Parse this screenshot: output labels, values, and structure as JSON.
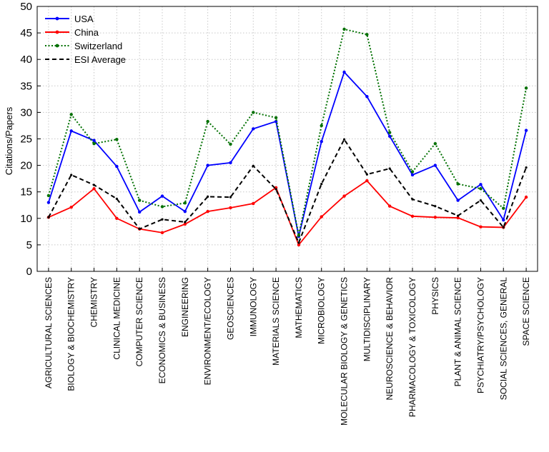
{
  "chart_data": {
    "type": "line",
    "title": "",
    "xlabel": "",
    "ylabel": "Citations/Papers",
    "ylim": [
      0,
      50
    ],
    "yticks": [
      0,
      5,
      10,
      15,
      20,
      25,
      30,
      35,
      40,
      45,
      50
    ],
    "grid": true,
    "legend_position": "top-left",
    "categories": [
      "AGRICULTURAL SCIENCES",
      "BIOLOGY & BIOCHEMISTRY",
      "CHEMISTRY",
      "CLINICAL MEDICINE",
      "COMPUTER SCIENCE",
      "ECONOMICS & BUSINESS",
      "ENGINEERING",
      "ENVIRONMENT/ECOLOGY",
      "GEOSCIENCES",
      "IMMUNOLOGY",
      "MATERIALS SCIENCE",
      "MATHEMATICS",
      "MICROBIOLOGY",
      "MOLECULAR BIOLOGY & GENETICS",
      "MULTIDISCIPLINARY",
      "NEUROSCIENCE & BEHAVIOR",
      "PHARMACOLOGY & TOXICOLOGY",
      "PHYSICS",
      "PLANT & ANIMAL SCIENCE",
      "PSYCHIATRY/PSYCHOLOGY",
      "SOCIAL SCIENCES, GENERAL",
      "SPACE SCIENCE"
    ],
    "series": [
      {
        "name": "USA",
        "color": "#0000ff",
        "style": "solid",
        "values": [
          13.0,
          26.5,
          24.7,
          19.8,
          11.2,
          14.2,
          11.3,
          20.0,
          20.5,
          26.9,
          28.3,
          6.6,
          24.5,
          37.6,
          33.0,
          25.5,
          18.2,
          20.0,
          13.4,
          16.4,
          9.7,
          26.6
        ]
      },
      {
        "name": "China",
        "color": "#ff0000",
        "style": "solid",
        "values": [
          10.2,
          12.1,
          15.6,
          10.0,
          8.0,
          7.3,
          8.9,
          11.3,
          12.0,
          12.8,
          15.8,
          5.0,
          10.3,
          14.2,
          17.1,
          12.3,
          10.4,
          10.2,
          10.1,
          8.4,
          8.3,
          14.0
        ]
      },
      {
        "name": "Switzerland",
        "color": "#007000",
        "style": "dotted",
        "values": [
          14.3,
          29.6,
          24.1,
          24.9,
          13.4,
          12.2,
          12.9,
          28.3,
          24.0,
          30.0,
          29.0,
          6.8,
          27.5,
          45.7,
          44.7,
          26.2,
          18.8,
          24.1,
          16.5,
          15.6,
          11.9,
          34.6
        ]
      },
      {
        "name": "ESI Average",
        "color": "#000000",
        "style": "dashed",
        "values": [
          10.2,
          18.2,
          16.3,
          13.7,
          8.0,
          9.8,
          9.3,
          14.1,
          14.0,
          19.9,
          15.5,
          5.4,
          16.5,
          24.9,
          18.3,
          19.4,
          13.6,
          12.3,
          10.5,
          13.4,
          8.3,
          19.6
        ]
      }
    ]
  }
}
